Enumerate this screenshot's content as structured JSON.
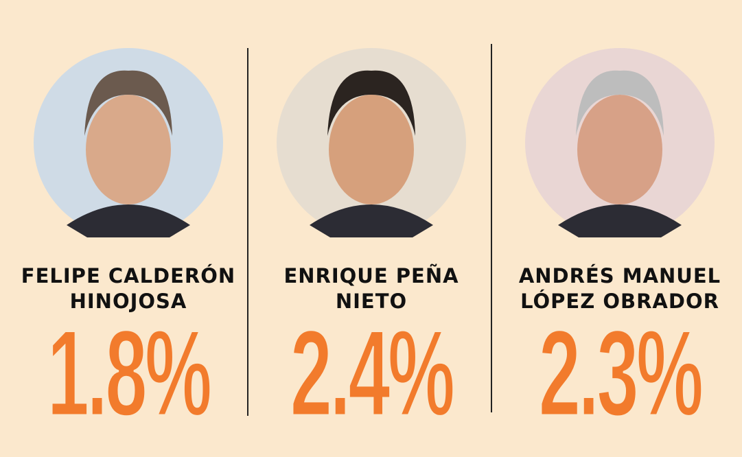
{
  "panels": [
    {
      "name": [
        "FELIPE CALDERÓN",
        "HINOJOSA"
      ],
      "value": "1.8%"
    },
    {
      "name": [
        "ENRIQUE PEÑA",
        "NIETO"
      ],
      "value": "2.4%"
    },
    {
      "name": [
        "ANDRÉS MANUEL",
        "LÓPEZ OBRADOR"
      ],
      "value": "2.3%"
    }
  ]
}
